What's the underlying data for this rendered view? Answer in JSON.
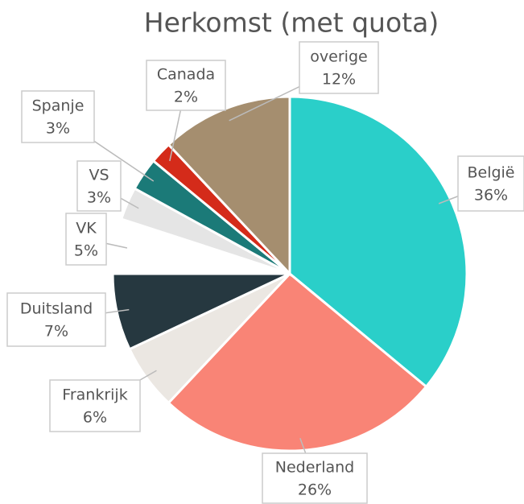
{
  "chart_data": {
    "type": "pie",
    "title": "Herkomst (met quota)",
    "categories": [
      "België",
      "Nederland",
      "Frankrijk",
      "Duitsland",
      "VK",
      "VS",
      "Spanje",
      "Canada",
      "overige"
    ],
    "values": [
      36,
      26,
      6,
      7,
      5,
      3,
      3,
      2,
      12
    ],
    "value_labels": [
      "36%",
      "26%",
      "6%",
      "7%",
      "5%",
      "3%",
      "3%",
      "2%",
      "12%"
    ],
    "colors": [
      "#2acfc9",
      "#f98476",
      "#ebe7e2",
      "#263840",
      "#ffffff",
      "#e5e5e5",
      "#1b7a78",
      "#d42b1a",
      "#a58e6f"
    ]
  }
}
